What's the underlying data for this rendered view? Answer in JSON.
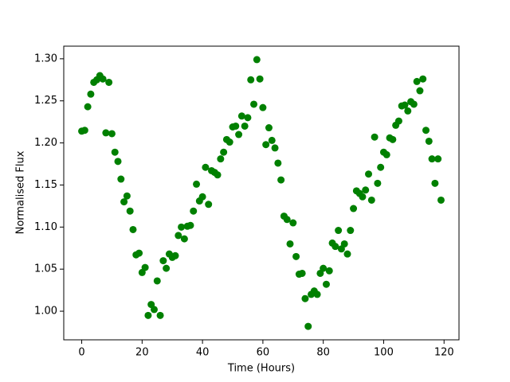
{
  "chart_data": {
    "type": "scatter",
    "x_label": "Time (Hours)",
    "y_label": "Normalised Flux",
    "color": "#008000",
    "x": [
      0,
      1,
      2,
      3,
      4,
      5,
      6,
      7,
      8,
      9,
      10,
      11,
      12,
      13,
      14,
      15,
      16,
      17,
      18,
      19,
      20,
      21,
      22,
      23,
      24,
      25,
      26,
      27,
      28,
      29,
      30,
      31,
      32,
      33,
      34,
      35,
      36,
      37,
      38,
      39,
      40,
      41,
      42,
      43,
      44,
      45,
      46,
      47,
      48,
      49,
      50,
      51,
      52,
      53,
      54,
      55,
      56,
      57,
      58,
      59,
      60,
      61,
      62,
      63,
      64,
      65,
      66,
      67,
      68,
      69,
      70,
      71,
      72,
      73,
      74,
      75,
      76,
      77,
      78,
      79,
      80,
      81,
      82,
      83,
      84,
      85,
      86,
      87,
      88,
      89,
      90,
      91,
      92,
      93,
      94,
      95,
      96,
      97,
      98,
      99,
      100,
      101,
      102,
      103,
      104,
      105,
      106,
      107,
      108,
      109,
      110,
      111,
      112,
      113,
      114,
      115,
      116,
      117,
      118,
      119
    ],
    "values": [
      1.214,
      1.215,
      1.243,
      1.258,
      1.272,
      1.275,
      1.28,
      1.276,
      1.212,
      1.272,
      1.211,
      1.189,
      1.178,
      1.157,
      1.13,
      1.137,
      1.119,
      1.097,
      1.067,
      1.069,
      1.046,
      1.052,
      0.995,
      1.008,
      1.002,
      1.036,
      0.995,
      1.06,
      1.051,
      1.068,
      1.064,
      1.066,
      1.09,
      1.1,
      1.086,
      1.101,
      1.102,
      1.119,
      1.151,
      1.131,
      1.136,
      1.171,
      1.127,
      1.167,
      1.165,
      1.162,
      1.181,
      1.189,
      1.204,
      1.201,
      1.219,
      1.22,
      1.21,
      1.232,
      1.22,
      1.23,
      1.275,
      1.246,
      1.299,
      1.276,
      1.242,
      1.198,
      1.218,
      1.203,
      1.194,
      1.176,
      1.156,
      1.113,
      1.109,
      1.08,
      1.105,
      1.065,
      1.044,
      1.045,
      1.015,
      0.982,
      1.02,
      1.024,
      1.02,
      1.045,
      1.051,
      1.032,
      1.048,
      1.081,
      1.077,
      1.096,
      1.074,
      1.08,
      1.068,
      1.096,
      1.122,
      1.143,
      1.14,
      1.136,
      1.144,
      1.163,
      1.132,
      1.207,
      1.152,
      1.171,
      1.189,
      1.186,
      1.206,
      1.204,
      1.221,
      1.226,
      1.244,
      1.245,
      1.238,
      1.249,
      1.246,
      1.273,
      1.262,
      1.276,
      1.215,
      1.202,
      1.181,
      1.152,
      1.181,
      1.132
    ],
    "xlim": [
      -5.95,
      124.95
    ],
    "ylim": [
      0.966,
      1.315
    ],
    "xticks": [
      0,
      20,
      40,
      60,
      80,
      100,
      120
    ],
    "yticks": [
      {
        "value": 1.0,
        "label": "1.00"
      },
      {
        "value": 1.05,
        "label": "1.05"
      },
      {
        "value": 1.1,
        "label": "1.10"
      },
      {
        "value": 1.15,
        "label": "1.15"
      },
      {
        "value": 1.2,
        "label": "1.20"
      },
      {
        "value": 1.25,
        "label": "1.25"
      },
      {
        "value": 1.3,
        "label": "1.30"
      }
    ]
  }
}
